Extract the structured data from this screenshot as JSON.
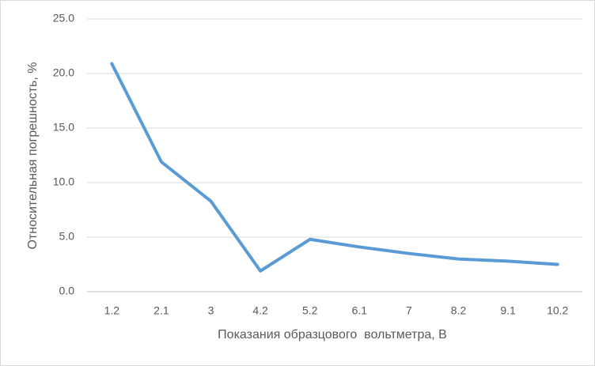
{
  "chart_data": {
    "type": "line",
    "x_label": "Показания образцового  вольтметра, В",
    "y_label": "Относительная погрешность, %",
    "categories": [
      "1.2",
      "2.1",
      "3",
      "4.2",
      "5.2",
      "6.1",
      "7",
      "8.2",
      "9.1",
      "10.2"
    ],
    "values": [
      20.9,
      11.9,
      8.3,
      1.9,
      4.8,
      4.1,
      3.5,
      3.0,
      2.8,
      2.5
    ],
    "color": "#5b9bd5",
    "ylim": [
      0,
      25
    ],
    "yticks": [
      {
        "value": 0,
        "label": "0.0"
      },
      {
        "value": 5,
        "label": "5.0"
      },
      {
        "value": 10,
        "label": "10.0"
      },
      {
        "value": 15,
        "label": "15.0"
      },
      {
        "value": 20,
        "label": "20.0"
      },
      {
        "value": 25,
        "label": "25.0"
      }
    ],
    "grid": true
  }
}
